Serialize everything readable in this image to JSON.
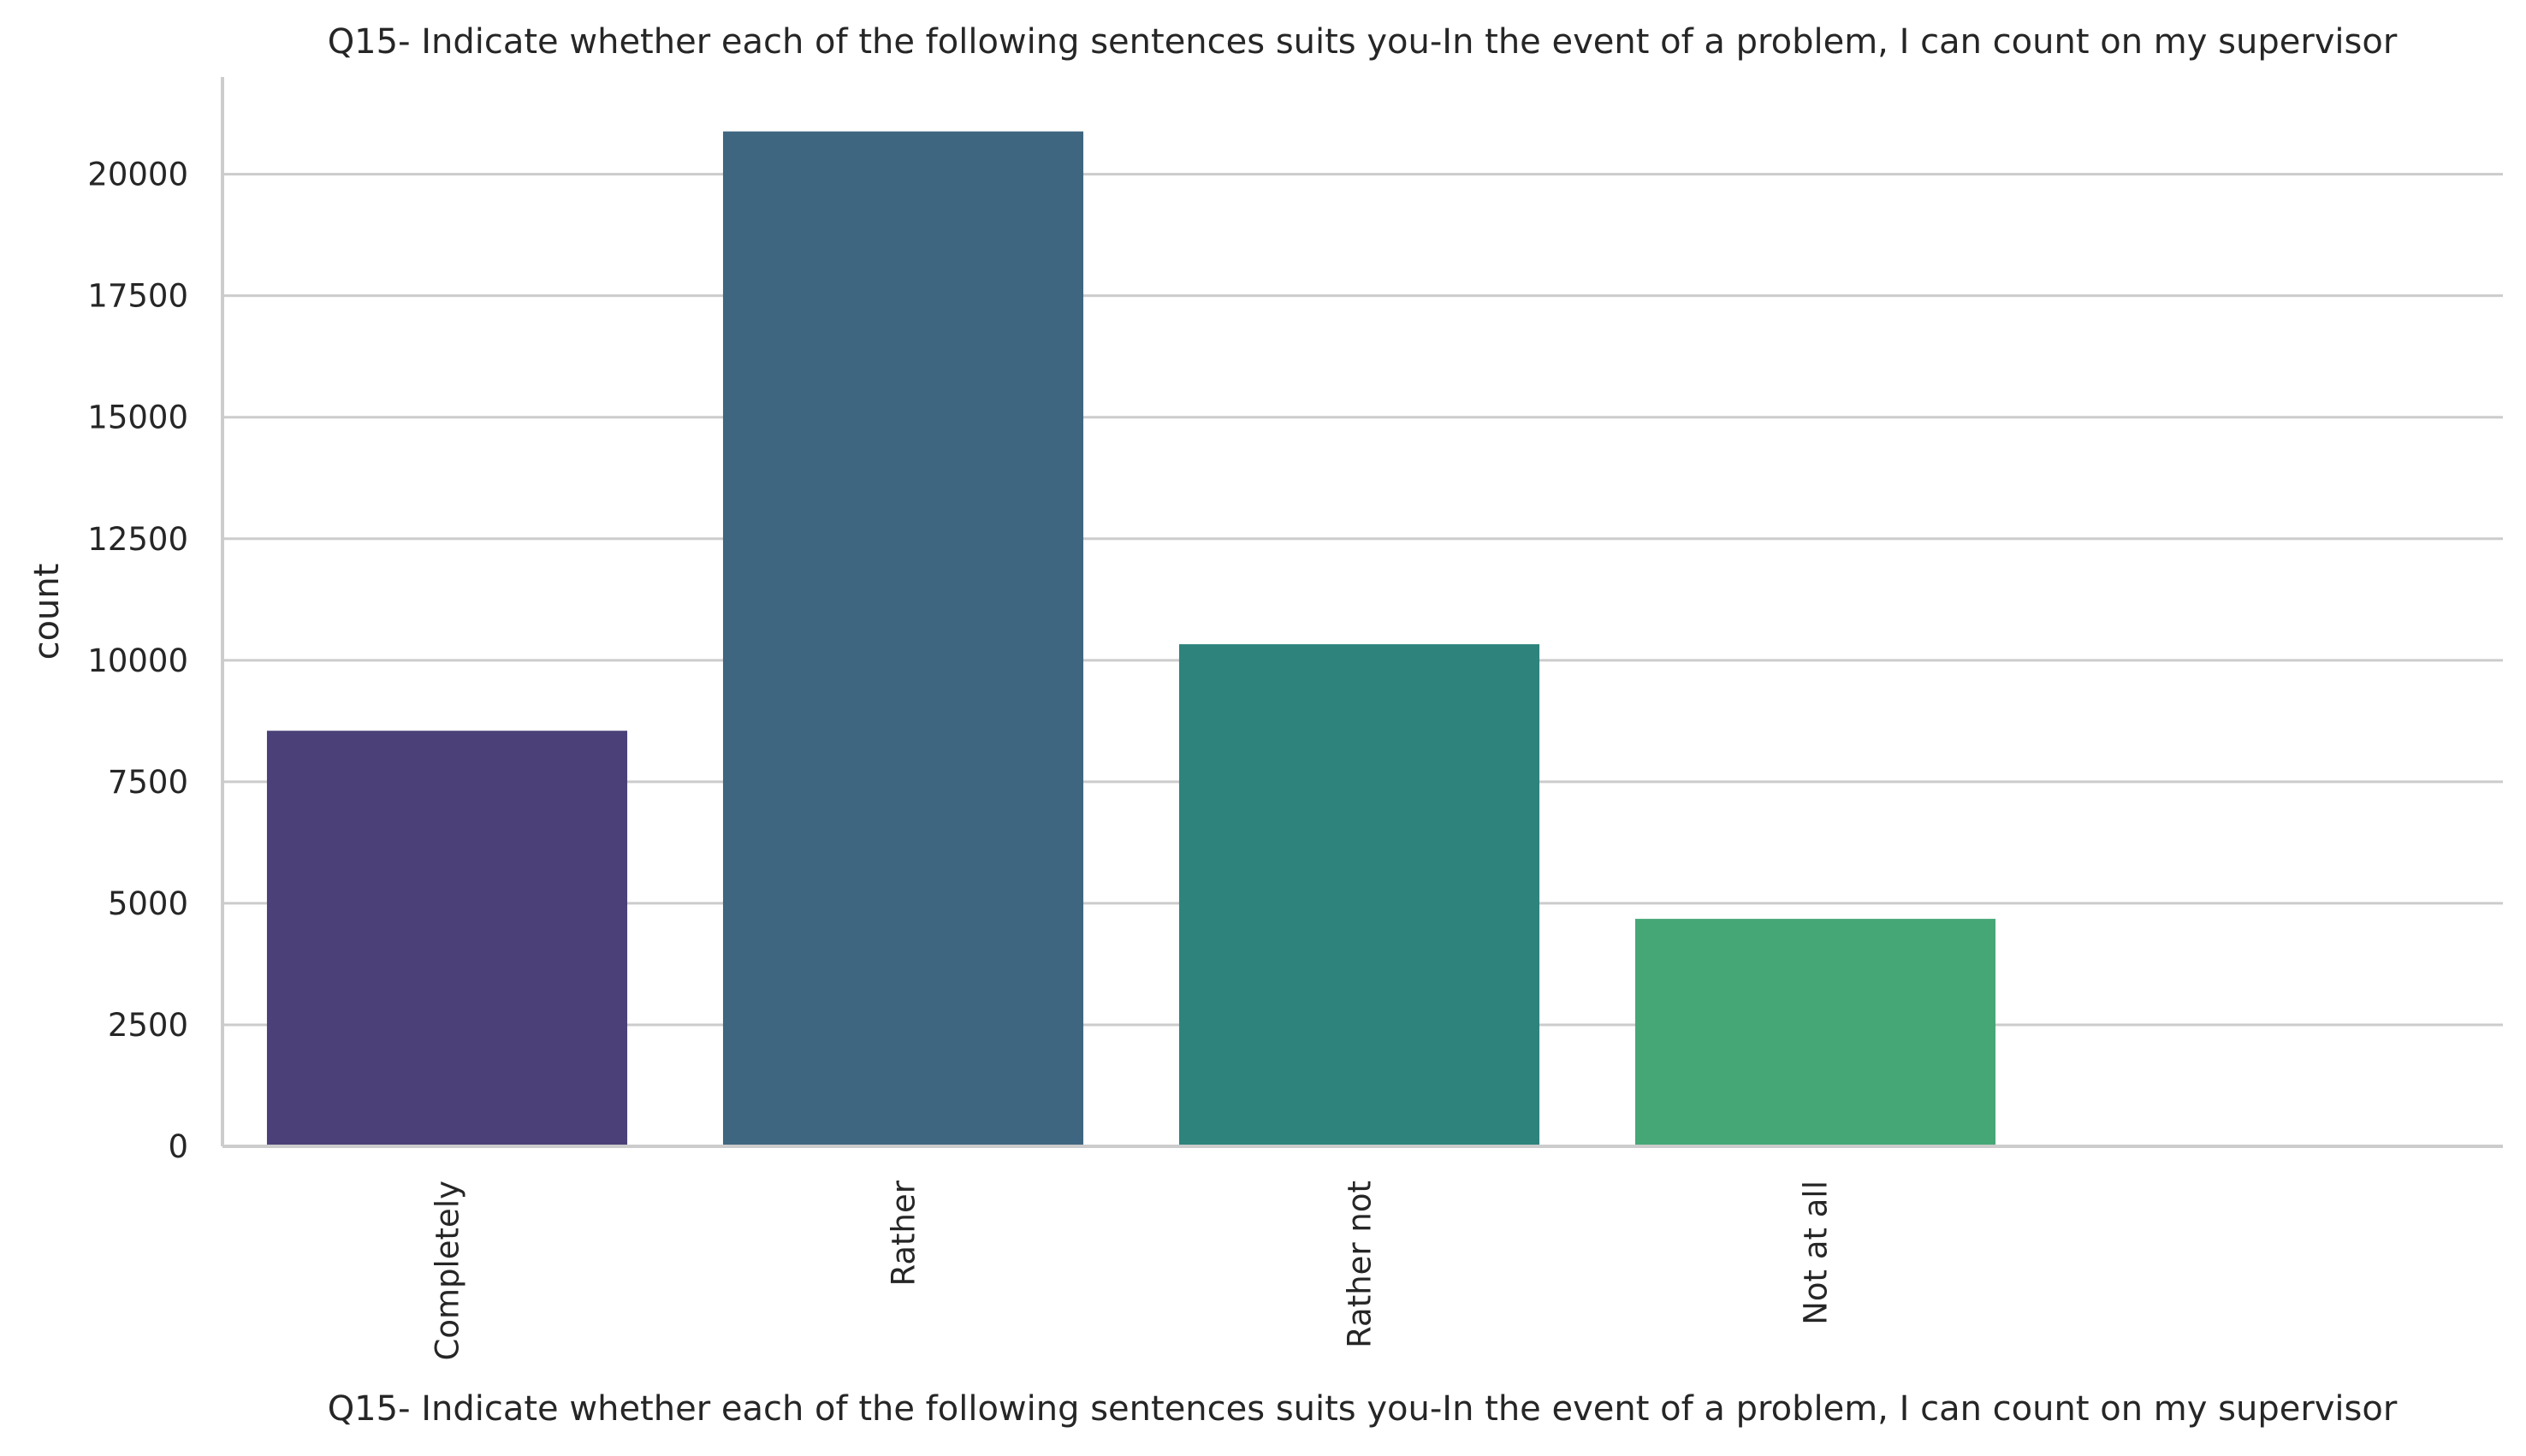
{
  "chart_data": {
    "type": "bar",
    "title": "Q15- Indicate whether each of the following sentences suits you-In the event of a problem, I can count on my supervisor",
    "xlabel": "Q15- Indicate whether each of the following sentences suits you-In the event of a problem, I can count on my supervisor",
    "ylabel": "count",
    "categories": [
      "Completely",
      "Rather",
      "Rather not",
      "Not at all"
    ],
    "values": [
      8550,
      20880,
      10330,
      4680
    ],
    "colors": [
      "#4b4178",
      "#3e6680",
      "#2e847d",
      "#46a776"
    ],
    "ylim": [
      0,
      22000
    ],
    "yticks": [
      0,
      2500,
      5000,
      7500,
      10000,
      12500,
      15000,
      17500,
      20000
    ],
    "grid": "horizontal"
  }
}
